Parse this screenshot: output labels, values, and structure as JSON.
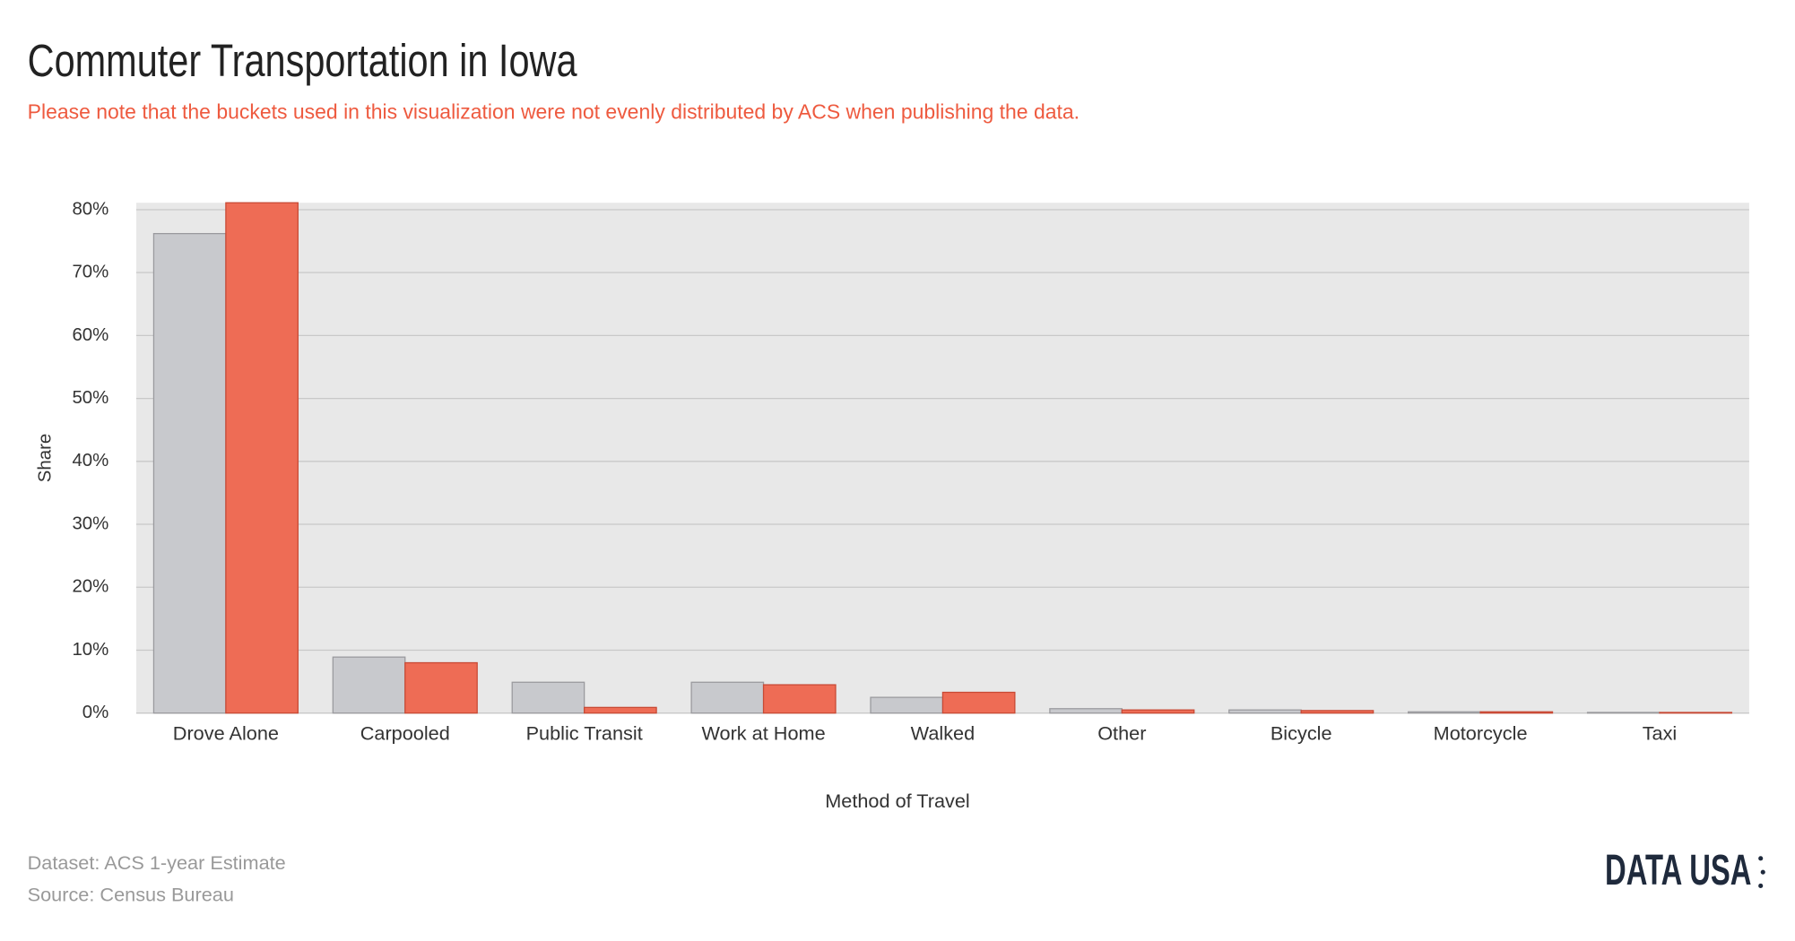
{
  "chart_data": {
    "type": "bar",
    "title": "Commuter Transportation in Iowa",
    "subtitle": "Please note that the buckets used in this visualization were not evenly distributed by ACS when publishing the data.",
    "y_label": "Share",
    "x_label": "Method of Travel",
    "categories": [
      "Drove Alone",
      "Carpooled",
      "Public Transit",
      "Work at Home",
      "Walked",
      "Other",
      "Bicycle",
      "Motorcycle",
      "Taxi"
    ],
    "series": [
      {
        "color": "#c8c9cd",
        "values": [
          76.2,
          8.9,
          4.9,
          4.9,
          2.5,
          0.7,
          0.5,
          0.2,
          0.1
        ]
      },
      {
        "color": "#ee6c55",
        "values": [
          81.1,
          8.0,
          0.9,
          4.5,
          3.3,
          0.5,
          0.4,
          0.2,
          0.1
        ]
      }
    ],
    "ylim": [
      0,
      81.1
    ],
    "yticks": [
      {
        "value": 0,
        "label": "0%"
      },
      {
        "value": 10,
        "label": "10%"
      },
      {
        "value": 20,
        "label": "20%"
      },
      {
        "value": 30,
        "label": "30%"
      },
      {
        "value": 40,
        "label": "40%"
      },
      {
        "value": 50,
        "label": "50%"
      },
      {
        "value": 60,
        "label": "60%"
      },
      {
        "value": 70,
        "label": "70%"
      },
      {
        "value": 80,
        "label": "80%"
      }
    ],
    "grid": true
  },
  "footer": {
    "notes": [
      "Dataset: ACS 1-year Estimate",
      "Source: Census Bureau"
    ],
    "logo": "DATA USA"
  }
}
